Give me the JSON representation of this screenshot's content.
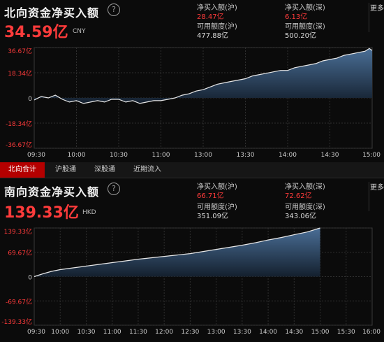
{
  "north": {
    "title": "北向资金净买入额",
    "amount": "34.59亿",
    "currency": "CNY",
    "buy_sh_label": "净买入额(沪)",
    "buy_sh_value": "28.47亿",
    "buy_sz_label": "净买入额(深)",
    "buy_sz_value": "6.13亿",
    "quota_sh_label": "可用额度(沪)",
    "quota_sh_value": "477.88亿",
    "quota_sz_label": "可用额度(深)",
    "quota_sz_value": "500.20亿",
    "more_label": "更多"
  },
  "tabs": [
    {
      "label": "北向合计",
      "active": true
    },
    {
      "label": "沪股通",
      "active": false
    },
    {
      "label": "深股通",
      "active": false
    },
    {
      "label": "近期流入",
      "active": false
    }
  ],
  "south": {
    "title": "南向资金净买入额",
    "amount": "139.33亿",
    "currency": "HKD",
    "buy_sh_label": "净买入额(沪)",
    "buy_sh_value": "66.71亿",
    "buy_sz_label": "净买入额(深)",
    "buy_sz_value": "72.62亿",
    "quota_sh_label": "可用额度(沪)",
    "quota_sh_value": "351.09亿",
    "quota_sz_label": "可用额度(深)",
    "quota_sz_value": "343.06亿",
    "more_label": "更多"
  },
  "colors": {
    "up": "#ff3b3b",
    "down": "#ff3b3b",
    "line": "#e8e8e8",
    "fill_top": "#4a6e96",
    "fill_bottom": "#14202e",
    "grid": "#2f2f2f"
  },
  "chart_data": [
    {
      "type": "area",
      "ylim": [
        -36.67,
        36.67
      ],
      "y_tick_labels": [
        "36.67亿",
        "18.34亿",
        "0",
        "-18.34亿",
        "-36.67亿"
      ],
      "y_ticks": [
        36.67,
        18.34,
        0,
        -18.34,
        -36.67
      ],
      "x_tick_labels": [
        "09:30",
        "10:00",
        "10:30",
        "11:00",
        "13:00",
        "13:30",
        "14:00",
        "14:30",
        "15:00"
      ],
      "x_range_minutes": [
        0,
        240
      ],
      "grid": true,
      "x": [
        0,
        5,
        10,
        15,
        20,
        25,
        30,
        35,
        40,
        45,
        50,
        55,
        60,
        65,
        70,
        75,
        80,
        85,
        90,
        95,
        100,
        105,
        110,
        115,
        120,
        125,
        130,
        135,
        140,
        145,
        150,
        155,
        160,
        165,
        170,
        175,
        180,
        185,
        190,
        195,
        200,
        205,
        210,
        215,
        220,
        225,
        230,
        235,
        238,
        240
      ],
      "values": [
        -1.5,
        1,
        0,
        2,
        -1,
        -3,
        -2,
        -4,
        -3,
        -2,
        -3,
        -1,
        -1,
        -3,
        -2,
        -4,
        -3,
        -2,
        -2,
        -1,
        0,
        2,
        3,
        5,
        6,
        8,
        10,
        11,
        12,
        13,
        14,
        16,
        17,
        18,
        19,
        20,
        20,
        22,
        23,
        24,
        25,
        27,
        28,
        29,
        31,
        32,
        33,
        34,
        36,
        34.59
      ]
    },
    {
      "type": "area",
      "ylim": [
        -139.33,
        139.33
      ],
      "y_tick_labels": [
        "139.33亿",
        "69.67亿",
        "0",
        "-69.67亿",
        "-139.33亿"
      ],
      "y_ticks": [
        139.33,
        69.67,
        0,
        -69.67,
        -139.33
      ],
      "x_tick_labels": [
        "09:30",
        "10:00",
        "10:30",
        "11:00",
        "11:30",
        "12:00",
        "12:30",
        "13:00",
        "13:30",
        "14:00",
        "14:30",
        "15:00",
        "15:30",
        "16:00"
      ],
      "x_range_minutes": [
        0,
        390
      ],
      "grid": true,
      "x": [
        0,
        10,
        20,
        30,
        45,
        60,
        75,
        90,
        105,
        120,
        135,
        150,
        165,
        180,
        195,
        210,
        225,
        240,
        255,
        270,
        285,
        300,
        315,
        330
      ],
      "values": [
        0,
        8,
        15,
        20,
        25,
        30,
        35,
        40,
        45,
        50,
        54,
        58,
        62,
        66,
        72,
        78,
        84,
        90,
        97,
        105,
        112,
        120,
        128,
        139.33
      ]
    }
  ]
}
